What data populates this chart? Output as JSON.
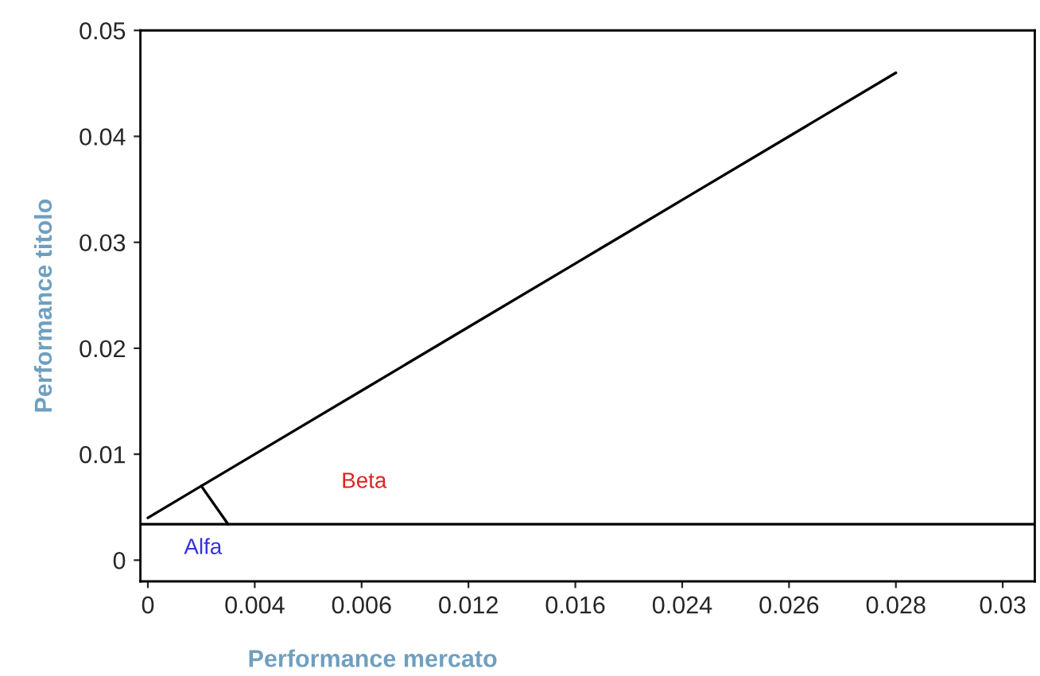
{
  "chart_data": {
    "type": "line",
    "xlabel": "Performance mercato",
    "ylabel": "Performance titolo",
    "categories": [
      "0",
      "0.004",
      "0.006",
      "0.012",
      "0.016",
      "0.024",
      "0.026",
      "0.028",
      "0.03"
    ],
    "series": [
      {
        "color": "#000000",
        "values": [
          0.004,
          0.01,
          0.016,
          0.022,
          0.028,
          0.034,
          0.04,
          0.046,
          null
        ]
      }
    ],
    "ylim": [
      -0.002,
      0.05
    ],
    "yticks": [
      0,
      0.01,
      0.02,
      0.03,
      0.04,
      0.05
    ],
    "ref_lines": [
      {
        "axis": "y",
        "value": 0.0034,
        "color": "#000000"
      }
    ],
    "annotations": [
      "Alfa",
      "Beta"
    ],
    "grid": false,
    "legend": false,
    "marker": "none",
    "line_style": "solid"
  }
}
